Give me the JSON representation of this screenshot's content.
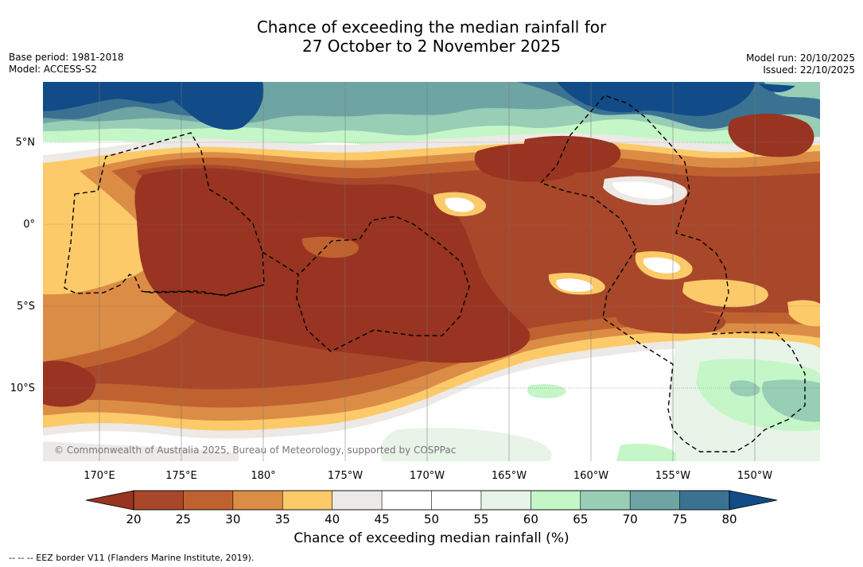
{
  "title_line1": "Chance of exceeding the median rainfall for",
  "title_line2": "27 October to 2 November 2025",
  "base_period": "Base period: 1981-2018",
  "model": "Model: ACCESS-S2",
  "model_run": "Model run: 20/10/2025",
  "issued": "Issued: 22/10/2025",
  "copyright": "© Commonwealth of Australia 2025, Bureau of Meteorology, supported by COSPPac",
  "lat_labels": [
    "5°N",
    "0°",
    "5°S",
    "10°S"
  ],
  "lon_labels": [
    "170°E",
    "175°E",
    "180°",
    "175°W",
    "170°W",
    "165°W",
    "160°W",
    "155°W",
    "150°W"
  ],
  "colorbar_ticks": [
    "20",
    "25",
    "30",
    "35",
    "40",
    "45",
    "50",
    "55",
    "60",
    "65",
    "70",
    "75",
    "80"
  ],
  "colorbar_title": "Chance of exceeding median rainfall (%)",
  "legend_line": "--  --  -- EEZ border V11 (Flanders Marine Institute, 2019).",
  "colors": {
    "bins": [
      "#a8472a",
      "#c0622f",
      "#db8c45",
      "#fdca6a",
      "#ede9e6",
      "#ffffff",
      "#ffffff",
      "#e7f4e7",
      "#c4f6c7",
      "#98cdb6",
      "#6ea5a4",
      "#3b7292"
    ],
    "low_extend": "#983421",
    "high_extend": "#114c88",
    "dark_brown": "#983421",
    "dark_blue": "#114c88"
  }
}
